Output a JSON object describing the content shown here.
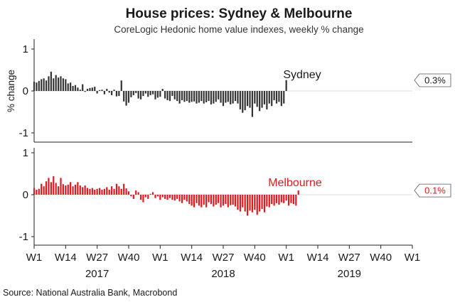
{
  "chart_data": {
    "type": "bar",
    "title": "House prices: Sydney & Melbourne",
    "subtitle": "CoreLogic Hedonic home value indexes, weekly % change",
    "ylabel": "% change",
    "source": "Source: National Australia Bank, Macrobond",
    "ylim": [
      -1.2,
      1.2
    ],
    "yticks": [
      1,
      0,
      -1
    ],
    "ytick_labels": [
      "1",
      "0",
      "-1"
    ],
    "xticks": [
      {
        "label": "W1",
        "week": 0
      },
      {
        "label": "W14",
        "week": 13
      },
      {
        "label": "W27",
        "week": 26
      },
      {
        "label": "W40",
        "week": 39
      },
      {
        "label": "W1",
        "week": 52
      },
      {
        "label": "W14",
        "week": 65
      },
      {
        "label": "W27",
        "week": 78
      },
      {
        "label": "W40",
        "week": 91
      },
      {
        "label": "W1",
        "week": 104
      },
      {
        "label": "W14",
        "week": 117
      },
      {
        "label": "W27",
        "week": 130
      },
      {
        "label": "W40",
        "week": 143
      },
      {
        "label": "W1",
        "week": 156
      }
    ],
    "year_labels": [
      {
        "label": "2017",
        "week": 26
      },
      {
        "label": "2018",
        "week": 78
      },
      {
        "label": "2019",
        "week": 130
      }
    ],
    "x_range_weeks": [
      0,
      156
    ],
    "series": [
      {
        "name": "Sydney",
        "color": "#333333",
        "label_color": "#1a1a1a",
        "callout": "0.3%",
        "start_week": 0,
        "values": [
          0.22,
          0.2,
          0.24,
          0.28,
          0.3,
          0.25,
          0.35,
          0.46,
          0.3,
          0.38,
          0.32,
          0.35,
          0.3,
          0.28,
          0.18,
          0.2,
          0.12,
          0.14,
          0.08,
          0.03,
          0.16,
          -0.02,
          0.05,
          0.07,
          0.08,
          0.1,
          -0.06,
          0.02,
          0.03,
          -0.08,
          0.05,
          -0.04,
          -0.1,
          0.03,
          -0.13,
          -0.12,
          0.25,
          -0.25,
          -0.35,
          -0.28,
          -0.15,
          -0.1,
          -0.05,
          -0.18,
          -0.2,
          -0.12,
          -0.06,
          -0.14,
          -0.1,
          -0.08,
          -0.2,
          -0.16,
          -0.14,
          0.05,
          -0.18,
          -0.22,
          -0.24,
          -0.12,
          -0.2,
          -0.24,
          -0.3,
          -0.22,
          -0.26,
          -0.24,
          -0.28,
          -0.26,
          -0.25,
          -0.3,
          -0.28,
          -0.24,
          -0.3,
          -0.27,
          -0.24,
          -0.32,
          -0.3,
          -0.26,
          -0.2,
          -0.28,
          -0.36,
          -0.28,
          -0.26,
          -0.32,
          -0.3,
          -0.24,
          -0.3,
          -0.44,
          -0.52,
          -0.46,
          -0.36,
          -0.4,
          -0.62,
          -0.3,
          -0.38,
          -0.48,
          -0.4,
          -0.32,
          -0.44,
          -0.3,
          -0.36,
          -0.22,
          -0.3,
          -0.26,
          -0.36,
          -0.3,
          0.26
        ]
      },
      {
        "name": "Melbourne",
        "color": "#e0191e",
        "label_color": "#e0191e",
        "callout": "0.1%",
        "start_week": 0,
        "values": [
          0.16,
          0.12,
          0.14,
          0.26,
          0.2,
          0.32,
          0.4,
          0.3,
          0.44,
          0.28,
          0.2,
          0.4,
          0.25,
          0.22,
          0.24,
          0.3,
          0.2,
          0.24,
          0.3,
          0.22,
          0.18,
          0.22,
          0.16,
          0.14,
          0.16,
          0.12,
          0.14,
          0.16,
          0.12,
          0.14,
          0.18,
          0.12,
          0.2,
          0.14,
          0.26,
          0.2,
          0.14,
          0.26,
          0.15,
          0.08,
          -0.04,
          -0.1,
          0.1,
          0.06,
          -0.12,
          -0.18,
          -0.06,
          -0.1,
          0.02,
          0.06,
          -0.08,
          -0.04,
          -0.12,
          -0.06,
          -0.1,
          -0.12,
          -0.08,
          -0.12,
          -0.14,
          -0.1,
          -0.16,
          -0.2,
          -0.12,
          -0.16,
          -0.22,
          -0.26,
          -0.3,
          -0.2,
          -0.26,
          -0.3,
          -0.24,
          -0.3,
          -0.18,
          -0.22,
          -0.28,
          -0.24,
          -0.2,
          -0.3,
          -0.26,
          -0.22,
          -0.3,
          -0.25,
          -0.24,
          -0.28,
          -0.36,
          -0.4,
          -0.3,
          -0.4,
          -0.5,
          -0.38,
          -0.42,
          -0.36,
          -0.48,
          -0.4,
          -0.34,
          -0.42,
          -0.28,
          -0.3,
          -0.22,
          -0.26,
          -0.2,
          -0.24,
          -0.18,
          -0.2,
          -0.14,
          -0.26,
          -0.2,
          -0.22,
          -0.26,
          0.1
        ]
      }
    ]
  }
}
